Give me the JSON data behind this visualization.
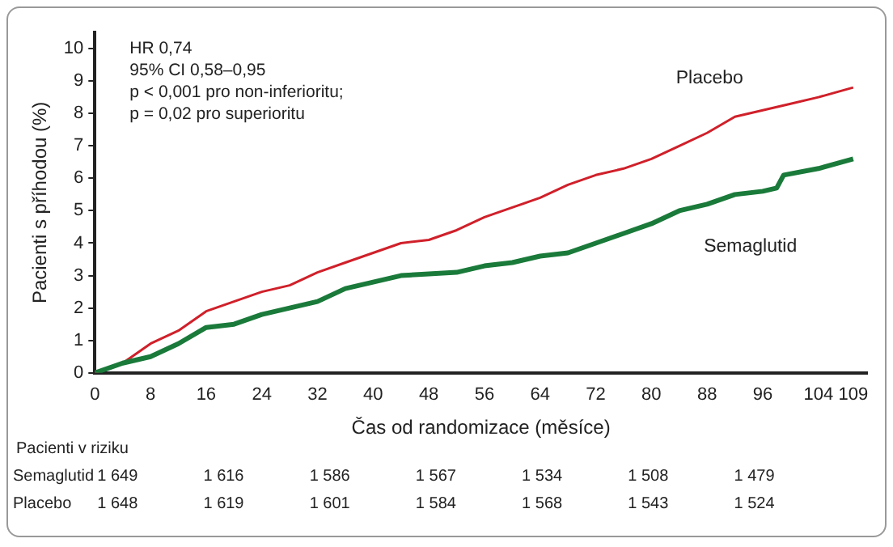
{
  "chart_data": {
    "type": "line",
    "xlabel": "Čas od randomizace (měsíce)",
    "ylabel": "Pacienti s příhodou (%)",
    "xlim": [
      0,
      111
    ],
    "xticks": [
      0,
      8,
      16,
      24,
      32,
      40,
      48,
      56,
      64,
      72,
      80,
      88,
      96,
      104,
      109
    ],
    "ylim": [
      0,
      10.5
    ],
    "yticks": [
      0,
      1,
      2,
      3,
      4,
      5,
      6,
      7,
      8,
      9,
      10
    ],
    "grid": false,
    "legend": false,
    "marker": "none",
    "line_style": "solid",
    "series": [
      {
        "name": "Semaglutid",
        "color": "#1a7a3a",
        "x": [
          0,
          4,
          8,
          12,
          16,
          20,
          24,
          28,
          32,
          36,
          40,
          44,
          48,
          52,
          56,
          60,
          64,
          68,
          72,
          76,
          80,
          84,
          88,
          92,
          96,
          98,
          99,
          104,
          109
        ],
        "values": [
          0,
          0.3,
          0.5,
          0.9,
          1.4,
          1.5,
          1.8,
          2.0,
          2.2,
          2.6,
          2.8,
          3.0,
          3.05,
          3.1,
          3.3,
          3.4,
          3.6,
          3.7,
          4.0,
          4.3,
          4.6,
          5.0,
          5.2,
          5.5,
          5.6,
          5.7,
          6.1,
          6.3,
          6.6
        ]
      },
      {
        "name": "Placebo",
        "color": "#d0202a",
        "x": [
          0,
          4,
          8,
          12,
          16,
          20,
          24,
          28,
          32,
          36,
          40,
          44,
          48,
          52,
          56,
          60,
          64,
          68,
          72,
          76,
          80,
          84,
          88,
          92,
          96,
          100,
          104,
          109
        ],
        "values": [
          0,
          0.3,
          0.9,
          1.3,
          1.9,
          2.2,
          2.5,
          2.7,
          3.1,
          3.4,
          3.7,
          4.0,
          4.1,
          4.4,
          4.8,
          5.1,
          5.4,
          5.8,
          6.1,
          6.3,
          6.6,
          7.0,
          7.4,
          7.9,
          8.1,
          8.3,
          8.5,
          8.8
        ]
      }
    ],
    "annotations": [
      "HR 0,74",
      "95% CI 0,58–0,95",
      "p < 0,001 pro non-inferioritu;",
      "p = 0,02 pro superioritu",
      "Pacienti v riziku",
      "1 649",
      "1 616",
      "1 586",
      "1 567",
      "1 534",
      "1 508",
      "1 479",
      "1 648",
      "1 619",
      "1 601",
      "1 584",
      "1 568",
      "1 543",
      "1 524"
    ]
  }
}
